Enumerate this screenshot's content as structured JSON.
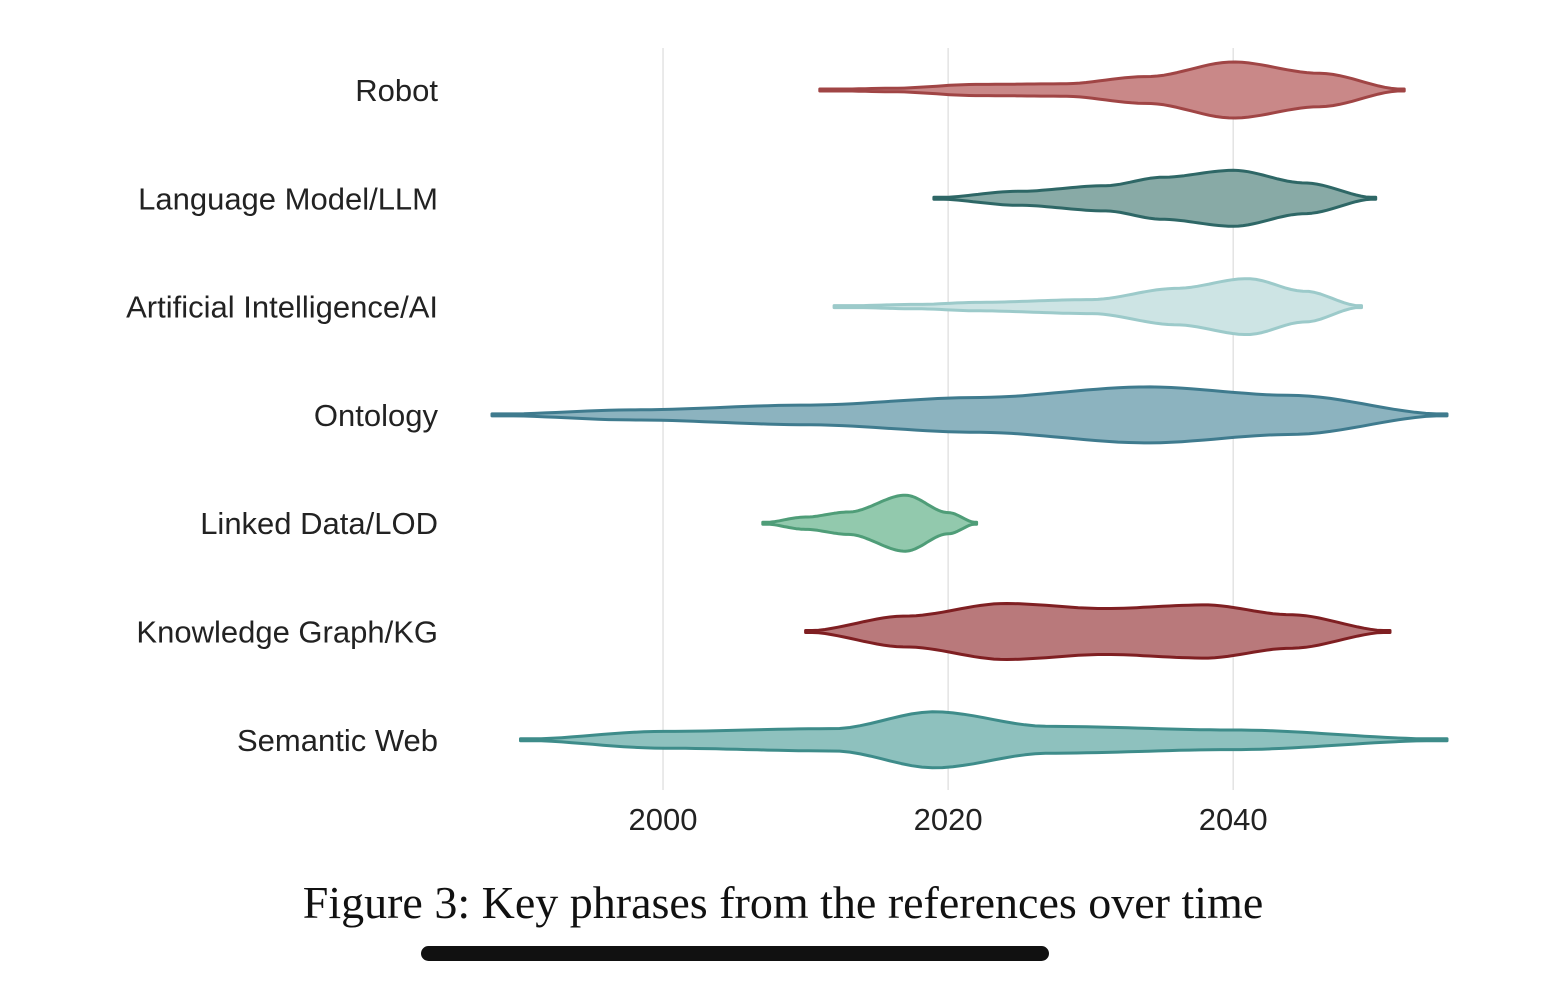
{
  "caption": "Figure 3: Key phrases from the references over time",
  "chart_data": {
    "type": "violin",
    "orientation": "horizontal",
    "title": "",
    "xlabel": "",
    "ylabel": "",
    "xlim": [
      1988,
      2055
    ],
    "xticks": [
      2000,
      2020,
      2040
    ],
    "grid": "vertical",
    "legend": "none",
    "series": [
      {
        "label": "Robot",
        "color": "#c98888",
        "edge": "#a04545",
        "min": 2011,
        "max": 2052,
        "density": [
          [
            2011,
            0.02
          ],
          [
            2016,
            0.06
          ],
          [
            2022,
            0.2
          ],
          [
            2028,
            0.22
          ],
          [
            2034,
            0.48
          ],
          [
            2040,
            1.0
          ],
          [
            2046,
            0.6
          ],
          [
            2052,
            0.02
          ]
        ]
      },
      {
        "label": "Language Model/LLM",
        "color": "#88aaa6",
        "edge": "#2e6766",
        "min": 2019,
        "max": 2050,
        "density": [
          [
            2019,
            0.02
          ],
          [
            2025,
            0.25
          ],
          [
            2031,
            0.45
          ],
          [
            2035,
            0.75
          ],
          [
            2040,
            1.0
          ],
          [
            2045,
            0.55
          ],
          [
            2050,
            0.02
          ]
        ]
      },
      {
        "label": "Artificial Intelligence/AI",
        "color": "#cde4e4",
        "edge": "#9ccaca",
        "min": 2012,
        "max": 2049,
        "density": [
          [
            2012,
            0.02
          ],
          [
            2018,
            0.08
          ],
          [
            2022,
            0.15
          ],
          [
            2030,
            0.25
          ],
          [
            2036,
            0.65
          ],
          [
            2041,
            1.0
          ],
          [
            2045,
            0.55
          ],
          [
            2049,
            0.02
          ]
        ]
      },
      {
        "label": "Ontology",
        "color": "#8cb3bf",
        "edge": "#3f7b8e",
        "min": 1988,
        "max": 2055,
        "density": [
          [
            1988,
            0.02
          ],
          [
            1998,
            0.18
          ],
          [
            2010,
            0.35
          ],
          [
            2022,
            0.62
          ],
          [
            2034,
            1.0
          ],
          [
            2044,
            0.7
          ],
          [
            2055,
            0.02
          ]
        ]
      },
      {
        "label": "Linked Data/LOD",
        "color": "#92c9ad",
        "edge": "#4f9d78",
        "min": 2007,
        "max": 2022,
        "density": [
          [
            2007,
            0.02
          ],
          [
            2010,
            0.22
          ],
          [
            2013,
            0.4
          ],
          [
            2017,
            1.0
          ],
          [
            2020,
            0.38
          ],
          [
            2022,
            0.02
          ]
        ]
      },
      {
        "label": "Knowledge Graph/KG",
        "color": "#b9797b",
        "edge": "#7f1f22",
        "min": 2010,
        "max": 2051,
        "density": [
          [
            2010,
            0.02
          ],
          [
            2017,
            0.55
          ],
          [
            2024,
            1.0
          ],
          [
            2031,
            0.82
          ],
          [
            2038,
            0.95
          ],
          [
            2044,
            0.6
          ],
          [
            2051,
            0.02
          ]
        ]
      },
      {
        "label": "Semantic Web",
        "color": "#8ec1be",
        "edge": "#3e8c8a",
        "min": 1990,
        "max": 2055,
        "density": [
          [
            1990,
            0.02
          ],
          [
            2000,
            0.3
          ],
          [
            2012,
            0.4
          ],
          [
            2019,
            1.0
          ],
          [
            2027,
            0.48
          ],
          [
            2040,
            0.35
          ],
          [
            2055,
            0.02
          ]
        ]
      }
    ]
  }
}
